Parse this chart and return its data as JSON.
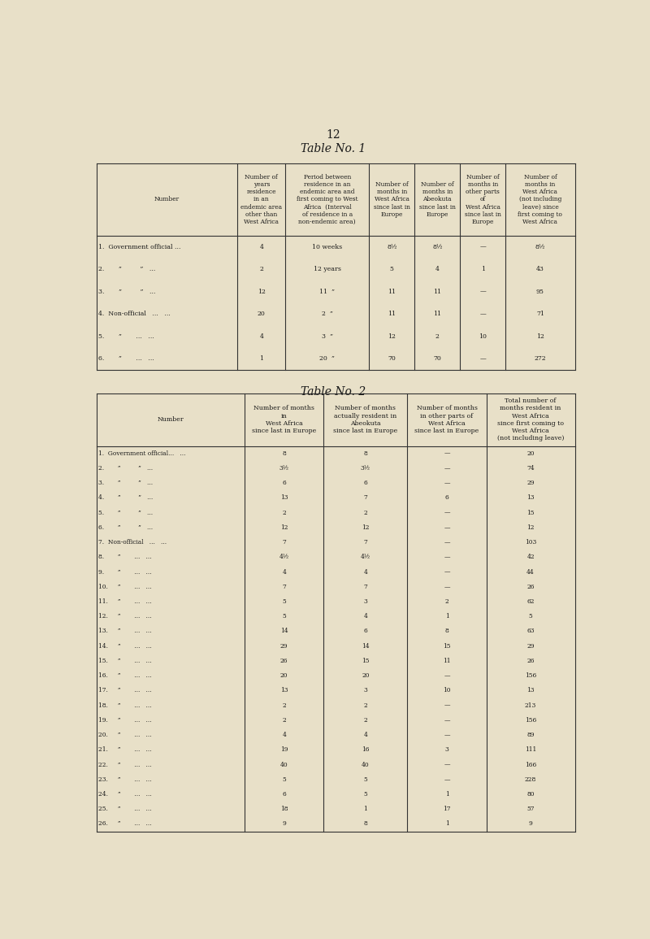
{
  "bg_color": "#e8e0c8",
  "page_num": "12",
  "table1_title": "Table No. 1",
  "table1_headers": [
    "Number",
    "Number of\nyears\nresidence\nin an\nendemic area\nother than\nWest Africa",
    "Period between\nresidence in an\nendemic area and\nfirst coming to West\nAfrica  (Interval\nof residence in a\nnon-endemic area)",
    "Number of\nmonths in\nWest Africa\nsince last in\nEurope",
    "Number of\nmonths in\nAbeokuta\nsince last in\nEurope",
    "Number of\nmonths in\nother parts\nof\nWest Africa\nsince last in\nEurope",
    "Number of\nmonths in\nWest Africa\n(not including\nleave) since\nfirst coming to\nWest Africa"
  ],
  "table1_rows": [
    [
      "1.  Government official ...",
      "4",
      "10 weeks",
      "8½",
      "8½",
      "—",
      "8½"
    ],
    [
      "2.       ”         ”   ...",
      "2",
      "12 years",
      "5",
      "4",
      "1",
      "43"
    ],
    [
      "3.       ”         ”   ...",
      "12",
      "11  ”",
      "11",
      "11",
      "—",
      "95"
    ],
    [
      "4.  Non-official   ...   ...",
      "20",
      "2  ”",
      "11",
      "11",
      "—",
      "71"
    ],
    [
      "5.       ”       ...   ...",
      "4",
      "3  ”",
      "12",
      "2",
      "10",
      "12"
    ],
    [
      "6.       ”       ...   ...",
      "1",
      "20  ”",
      "70",
      "70",
      "—",
      "272"
    ]
  ],
  "table2_title": "Table No. 2",
  "table2_headers": [
    "Number",
    "Number of months\nin\nWest Africa\nsince last in Europe",
    "Number of months\nactually resident in\nAbeokuta\nsince last in Europe",
    "Number of months\nin other parts of\nWest Africa\nsince last in Europe",
    "Total number of\nmonths resident in\nWest Africa\nsince first coming to\nWest Africa\n(not including leave)"
  ],
  "table2_rows": [
    [
      "1.  Government official...   ...",
      "8",
      "8",
      "—",
      "20"
    ],
    [
      "2.       ”         ”   ...",
      "3½",
      "3½",
      "—",
      "74"
    ],
    [
      "3.       ”         ”   ...",
      "6",
      "6",
      "—",
      "29"
    ],
    [
      "4.       ”         ”   ...",
      "13",
      "7",
      "6",
      "13"
    ],
    [
      "5.       ”         ”   ...",
      "2",
      "2",
      "—",
      "15"
    ],
    [
      "6.       ”         ”   ...",
      "12",
      "12",
      "—",
      "12"
    ],
    [
      "7.  Non-official   ...   ...",
      "7",
      "7",
      "—",
      "103"
    ],
    [
      "8.       ”       ...   ...",
      "4½",
      "4½",
      "—",
      "42"
    ],
    [
      "9.       ”       ...   ...",
      "4",
      "4",
      "—",
      "44"
    ],
    [
      "10.     ”       ...   ...",
      "7",
      "7",
      "—",
      "26"
    ],
    [
      "11.     ”       ...   ...",
      "5",
      "3",
      "2",
      "62"
    ],
    [
      "12.     ”       ...   ...",
      "5",
      "4",
      "1",
      "5"
    ],
    [
      "13.     ”       ...   ...",
      "14",
      "6",
      "8",
      "63"
    ],
    [
      "14.     ”       ...   ...",
      "29",
      "14",
      "15",
      "29"
    ],
    [
      "15.     ”       ...   ...",
      "26",
      "15",
      "11",
      "26"
    ],
    [
      "16.     ”       ...   ...",
      "20",
      "20",
      "—",
      "156"
    ],
    [
      "17.     ”       ...   ...",
      "13",
      "3",
      "10",
      "13"
    ],
    [
      "18.     ”       ...   ...",
      "2",
      "2",
      "—",
      "213"
    ],
    [
      "19.     ”       ...   ...",
      "2",
      "2",
      "—",
      "156"
    ],
    [
      "20.     ”       ...   ...",
      "4",
      "4",
      "—",
      "89"
    ],
    [
      "21.     ”       ...   ...",
      "19",
      "16",
      "3",
      "111"
    ],
    [
      "22.     ”       ...   ...",
      "40",
      "40",
      "—",
      "166"
    ],
    [
      "23.     ”       ...   ...",
      "5",
      "5",
      "—",
      "228"
    ],
    [
      "24.     ”       ...   ...",
      "6",
      "5",
      "1",
      "80"
    ],
    [
      "25.     ”       ...   ...",
      "18",
      "1",
      "17",
      "57"
    ],
    [
      "26.     ”       ...   ...",
      "9",
      "8",
      "1",
      "9"
    ]
  ]
}
